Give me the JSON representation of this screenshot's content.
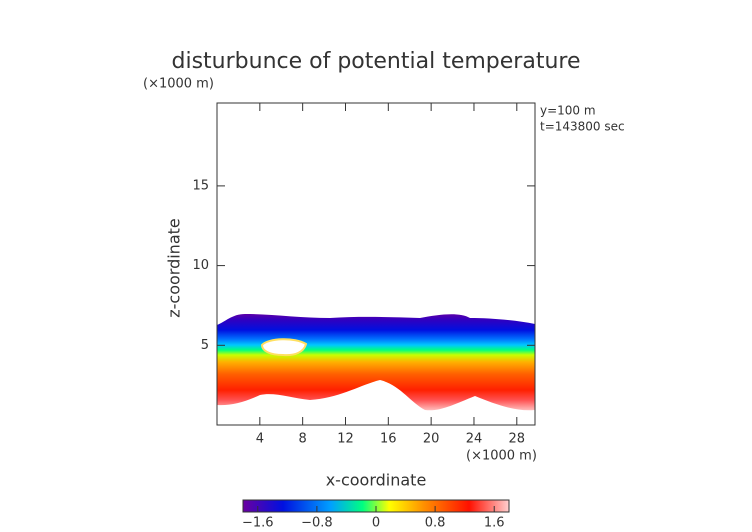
{
  "chart_data": {
    "type": "contour",
    "title": "disturbunce of potential temperature",
    "xlabel": "x-coordinate",
    "ylabel": "z-coordinate",
    "xunit": "(×1000 m)",
    "yunit": "(×1000 m)",
    "annotations": [
      "y=100 m",
      "t=143800 sec"
    ],
    "xlim": [
      0,
      29.7
    ],
    "xticks": [
      4,
      8,
      12,
      16,
      20,
      24,
      28
    ],
    "ylim": [
      0,
      20.2
    ],
    "yticks": [
      5,
      10,
      15
    ],
    "clim": [
      -1.8,
      1.8
    ],
    "cticks": [
      {
        "value": -1.6,
        "label": "−1.6"
      },
      {
        "value": -0.8,
        "label": "−0.8"
      },
      0,
      0.8,
      1.6
    ]
  }
}
